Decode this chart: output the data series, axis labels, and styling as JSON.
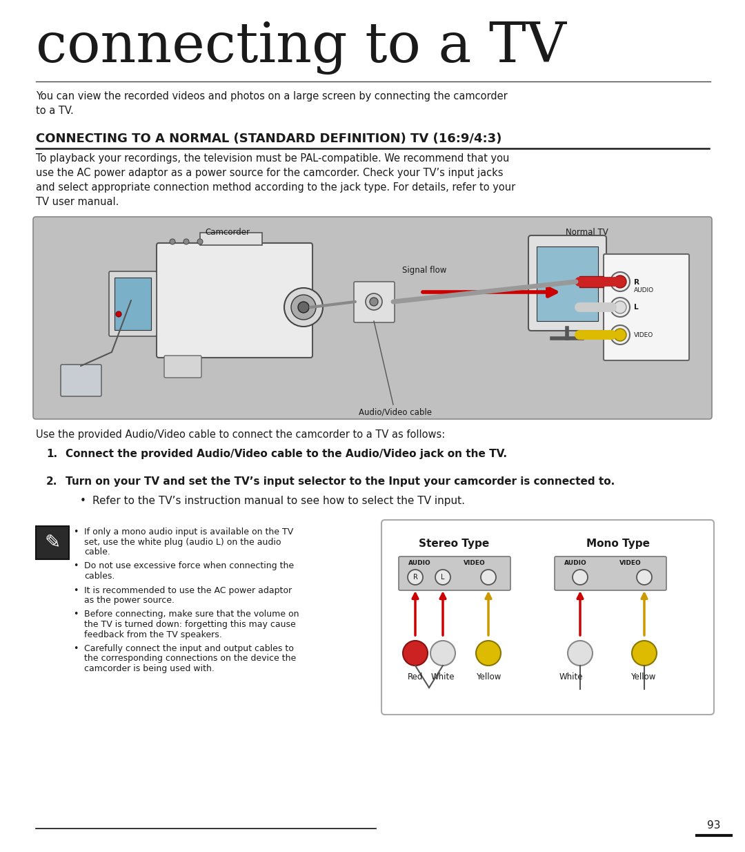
{
  "title": "connecting to a TV",
  "subtitle": "CONNECTING TO A NORMAL (STANDARD DEFINITION) TV (16:9/4:3)",
  "intro_text": "You can view the recorded videos and photos on a large screen by connecting the camcorder\nto a TV.",
  "section_text": "To playback your recordings, the television must be PAL-compatible. We recommend that you\nuse the AC power adaptor as a power source for the camcorder. Check your TV’s input jacks\nand select appropriate connection method according to the jack type. For details, refer to your\nTV user manual.",
  "use_text": "Use the provided Audio/Video cable to connect the camcorder to a TV as follows:",
  "step1_num": "1.",
  "step1": "Connect the provided Audio/Video cable to the Audio/Video jack on the TV.",
  "step2_num": "2.",
  "step2": "Turn on your TV and set the TV’s input selector to the Input your camcorder is connected to.",
  "step2_bullet": "Refer to the TV’s instruction manual to see how to select the TV input.",
  "note_bullets": [
    "If only a mono audio input is available on the TV\nset, use the white plug (audio L) on the audio\ncable.",
    "Do not use excessive force when connecting the\ncables.",
    "It is recommended to use the AC power adaptor\nas the power source.",
    "Before connecting, make sure that the volume on\nthe TV is turned down: forgetting this may cause\nfeedback from the TV speakers.",
    "Carefully connect the input and output cables to\nthe corresponding connections on the device the\ncamcorder is being used with."
  ],
  "stereo_label": "Stereo Type",
  "mono_label": "Mono Type",
  "page_number": "93",
  "bg_color": "#ffffff",
  "diagram_bg": "#c0c0c0",
  "title_color": "#1a1a1a",
  "text_color": "#1a1a1a"
}
